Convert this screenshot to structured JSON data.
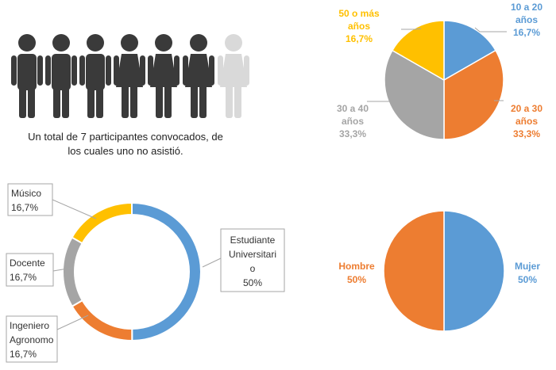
{
  "colors": {
    "blue": "#5b9bd5",
    "orange": "#ed7d31",
    "gray": "#a5a5a5",
    "yellow": "#ffc000",
    "person_dark": "#3a3a3a",
    "person_light": "#d9d9d9",
    "leader_line": "#a6a6a6"
  },
  "participants": {
    "caption_line1": "Un total de 7 participantes convocados, de",
    "caption_line2": "los cuales uno no asistió.",
    "total": 7,
    "absent": 1
  },
  "chart_data": [
    {
      "type": "pie",
      "slices": [
        {
          "label_lines": [
            "10 a 20",
            "años",
            "16,7%"
          ],
          "value": 16.7,
          "color": "#5b9bd5"
        },
        {
          "label_lines": [
            "20 a 30",
            "años",
            "33,3%"
          ],
          "value": 33.3,
          "color": "#ed7d31"
        },
        {
          "label_lines": [
            "30 a 40",
            "años",
            "33,3%"
          ],
          "value": 33.3,
          "color": "#a5a5a5"
        },
        {
          "label_lines": [
            "50 o más",
            "años",
            "16,7%"
          ],
          "value": 16.7,
          "color": "#ffc000"
        }
      ]
    },
    {
      "type": "pie",
      "variant": "donut",
      "slices": [
        {
          "label_lines": [
            "Estudiante",
            "Universitari",
            "o",
            "50%"
          ],
          "value": 50,
          "color": "#5b9bd5"
        },
        {
          "label_lines": [
            "Ingeniero",
            "Agronomo",
            "16,7%"
          ],
          "value": 16.7,
          "color": "#ed7d31"
        },
        {
          "label_lines": [
            "Docente",
            "16,7%"
          ],
          "value": 16.7,
          "color": "#a5a5a5"
        },
        {
          "label_lines": [
            "Músico",
            "16,7%"
          ],
          "value": 16.7,
          "color": "#ffc000"
        }
      ]
    },
    {
      "type": "pie",
      "slices": [
        {
          "label_lines": [
            "Mujer",
            "50%"
          ],
          "value": 50,
          "color": "#5b9bd5"
        },
        {
          "label_lines": [
            "Hombre",
            "50%"
          ],
          "value": 50,
          "color": "#ed7d31"
        }
      ]
    }
  ]
}
